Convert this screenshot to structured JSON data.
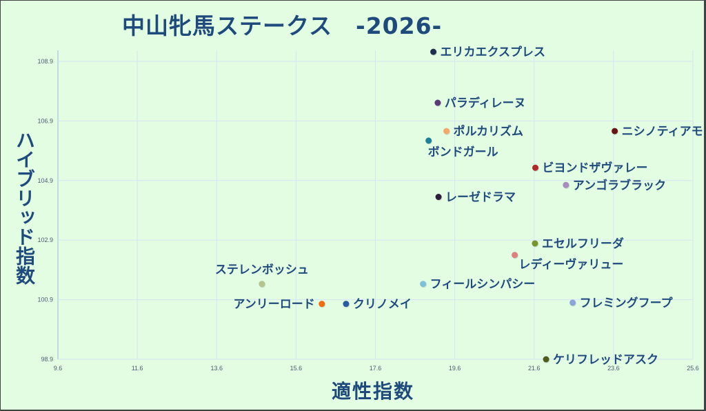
{
  "chart_data": {
    "type": "scatter",
    "title": "中山牝馬ステークス　-2026-",
    "xlabel": "適性指数",
    "ylabel": "ハイブリッド指数",
    "xlim": [
      9.6,
      25.6
    ],
    "ylim": [
      98.9,
      108.9
    ],
    "xticks": [
      9.6,
      11.6,
      13.6,
      15.6,
      17.6,
      19.6,
      21.6,
      23.6,
      25.6
    ],
    "yticks": [
      98.9,
      100.9,
      102.9,
      104.9,
      106.9,
      108.9
    ],
    "grid": true,
    "legend": "none (data labels on points)",
    "points": [
      {
        "name": "エリカエクスプレス",
        "x": 19.06,
        "y": 109.22,
        "color": "#1f2f4f",
        "label_pos": "right"
      },
      {
        "name": "パラディレーヌ",
        "x": 19.17,
        "y": 107.51,
        "color": "#5c3a7a",
        "label_pos": "right"
      },
      {
        "name": "ポルカリズム",
        "x": 19.39,
        "y": 106.56,
        "color": "#f4a86a",
        "label_pos": "right"
      },
      {
        "name": "ボンドガール",
        "x": 18.94,
        "y": 106.24,
        "color": "#1e8096",
        "label_pos": "below"
      },
      {
        "name": "ニシノティアモ",
        "x": 23.63,
        "y": 106.56,
        "color": "#6b1216",
        "label_pos": "right"
      },
      {
        "name": "ビヨンドザヴァレー",
        "x": 21.63,
        "y": 105.33,
        "color": "#b02a2a",
        "label_pos": "right"
      },
      {
        "name": "アンゴラブラック",
        "x": 22.4,
        "y": 104.75,
        "color": "#a88bc0",
        "label_pos": "right"
      },
      {
        "name": "レーゼドラマ",
        "x": 19.19,
        "y": 104.35,
        "color": "#2e1d3e",
        "label_pos": "right"
      },
      {
        "name": "エセルフリーダ",
        "x": 21.62,
        "y": 102.79,
        "color": "#76962a",
        "label_pos": "right"
      },
      {
        "name": "レディーヴァリュー",
        "x": 21.11,
        "y": 102.4,
        "color": "#e07f80",
        "label_pos": "below"
      },
      {
        "name": "フィールシンパシー",
        "x": 18.8,
        "y": 101.43,
        "color": "#7fbfdc",
        "label_pos": "right"
      },
      {
        "name": "ステレンボッシュ",
        "x": 14.74,
        "y": 101.43,
        "color": "#b5c48a",
        "label_pos": "above"
      },
      {
        "name": "アンリーロード",
        "x": 16.25,
        "y": 100.76,
        "color": "#f06b12",
        "label_pos": "left"
      },
      {
        "name": "クリノメイ",
        "x": 16.86,
        "y": 100.76,
        "color": "#2a5da0",
        "label_pos": "right"
      },
      {
        "name": "フレミングフープ",
        "x": 22.57,
        "y": 100.8,
        "color": "#8aa5dc",
        "label_pos": "right"
      },
      {
        "name": "ケリフレッドアスク",
        "x": 21.9,
        "y": 98.9,
        "color": "#4d5e1c",
        "label_pos": "right"
      }
    ]
  },
  "colors": {
    "background": "#e3fde2",
    "text": "#1f4a7c",
    "grid": "#d6e4f4"
  }
}
